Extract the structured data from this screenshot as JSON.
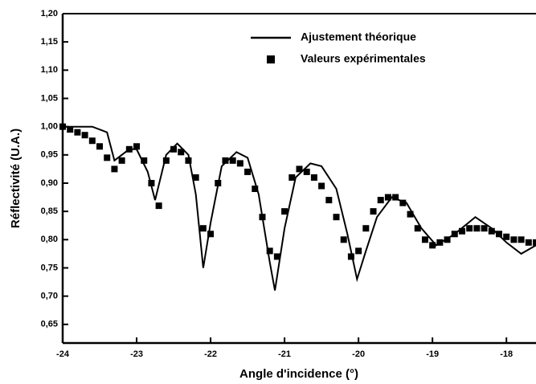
{
  "chart_data": {
    "type": "line",
    "xlabel": "Angle d'incidence (°)",
    "ylabel": "Réflectivité (U.A.)",
    "xlim": [
      -24,
      -17.6
    ],
    "ylim": [
      0.617,
      1.2
    ],
    "xticks": [
      -24,
      -23,
      -22,
      -21,
      -20,
      -19,
      -18
    ],
    "yticks": [
      {
        "value": 0.65,
        "label": "0,65"
      },
      {
        "value": 0.7,
        "label": "0,70"
      },
      {
        "value": 0.75,
        "label": "0,75"
      },
      {
        "value": 0.8,
        "label": "0,80"
      },
      {
        "value": 0.85,
        "label": "0,85"
      },
      {
        "value": 0.9,
        "label": "0,90"
      },
      {
        "value": 0.95,
        "label": "0,95"
      },
      {
        "value": 1.0,
        "label": "1,00"
      },
      {
        "value": 1.05,
        "label": "1,05"
      },
      {
        "value": 1.1,
        "label": "1,10"
      },
      {
        "value": 1.15,
        "label": "1,15"
      },
      {
        "value": 1.2,
        "label": "1,20"
      }
    ],
    "legend": "upper right",
    "series": [
      {
        "name": "Ajustement théorique",
        "type": "line",
        "color": "#000000",
        "x": [
          -24,
          -23.6,
          -23.4,
          -23.3,
          -23.1,
          -23.0,
          -22.85,
          -22.75,
          -22.6,
          -22.45,
          -22.3,
          -22.2,
          -22.1,
          -22.0,
          -21.85,
          -21.65,
          -21.5,
          -21.35,
          -21.2,
          -21.13,
          -21.0,
          -20.85,
          -20.65,
          -20.5,
          -20.3,
          -20.15,
          -20.02,
          -19.9,
          -19.75,
          -19.55,
          -19.35,
          -19.15,
          -18.95,
          -18.7,
          -18.42,
          -18.2,
          -18.0,
          -17.8,
          -17.6
        ],
        "values": [
          1.0,
          1.0,
          0.99,
          0.94,
          0.96,
          0.96,
          0.92,
          0.87,
          0.95,
          0.97,
          0.95,
          0.88,
          0.75,
          0.83,
          0.93,
          0.955,
          0.945,
          0.88,
          0.76,
          0.71,
          0.82,
          0.91,
          0.935,
          0.93,
          0.89,
          0.81,
          0.73,
          0.78,
          0.84,
          0.875,
          0.865,
          0.82,
          0.79,
          0.81,
          0.84,
          0.82,
          0.795,
          0.775,
          0.79
        ]
      },
      {
        "name": "Valeurs expérimentales",
        "type": "scatter",
        "color": "#000000",
        "x": [
          -24.0,
          -23.9,
          -23.8,
          -23.7,
          -23.6,
          -23.5,
          -23.4,
          -23.3,
          -23.2,
          -23.1,
          -23.0,
          -22.9,
          -22.8,
          -22.7,
          -22.6,
          -22.5,
          -22.4,
          -22.3,
          -22.2,
          -22.1,
          -22.0,
          -21.9,
          -21.8,
          -21.7,
          -21.6,
          -21.5,
          -21.4,
          -21.3,
          -21.2,
          -21.1,
          -21.0,
          -20.9,
          -20.8,
          -20.7,
          -20.6,
          -20.5,
          -20.4,
          -20.3,
          -20.2,
          -20.1,
          -20.0,
          -19.9,
          -19.8,
          -19.7,
          -19.6,
          -19.5,
          -19.4,
          -19.3,
          -19.2,
          -19.1,
          -19.0,
          -18.9,
          -18.8,
          -18.7,
          -18.6,
          -18.5,
          -18.4,
          -18.3,
          -18.2,
          -18.1,
          -18.0,
          -17.9,
          -17.8,
          -17.7,
          -17.6
        ],
        "values": [
          1.0,
          0.995,
          0.99,
          0.985,
          0.975,
          0.965,
          0.945,
          0.925,
          0.94,
          0.96,
          0.965,
          0.94,
          0.9,
          0.86,
          0.94,
          0.96,
          0.955,
          0.94,
          0.91,
          0.82,
          0.81,
          0.9,
          0.94,
          0.94,
          0.935,
          0.92,
          0.89,
          0.84,
          0.78,
          0.77,
          0.85,
          0.91,
          0.925,
          0.92,
          0.91,
          0.895,
          0.87,
          0.84,
          0.8,
          0.77,
          0.78,
          0.82,
          0.85,
          0.87,
          0.875,
          0.875,
          0.865,
          0.845,
          0.82,
          0.8,
          0.79,
          0.795,
          0.8,
          0.81,
          0.815,
          0.82,
          0.82,
          0.82,
          0.815,
          0.81,
          0.805,
          0.8,
          0.8,
          0.795,
          0.795
        ]
      }
    ]
  }
}
